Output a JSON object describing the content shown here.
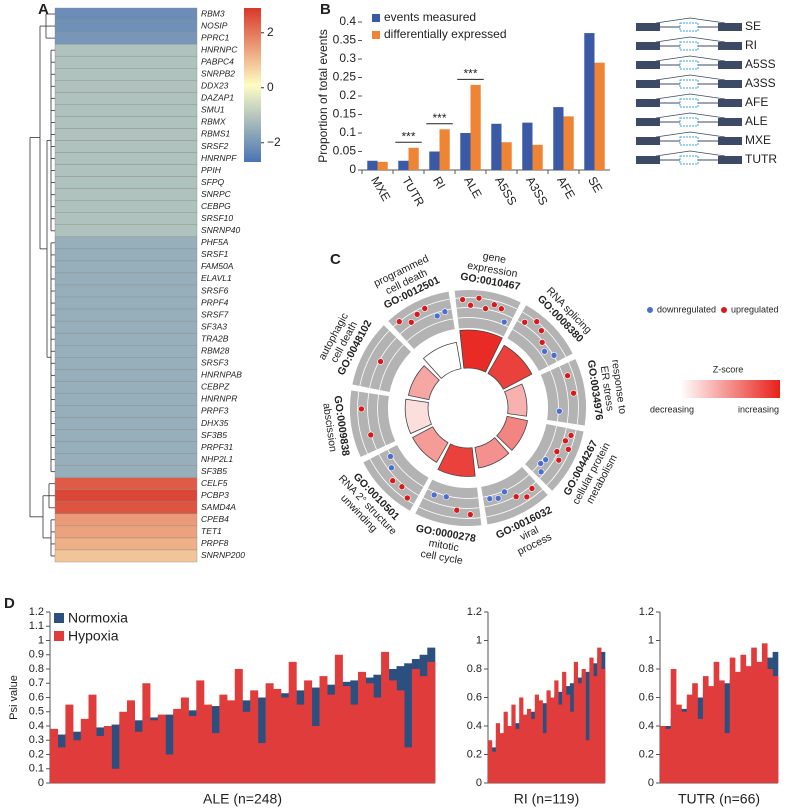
{
  "chart_data": [
    {
      "type": "heatmap",
      "panel_label": "A",
      "rows": [
        "RBM3",
        "NOSIP",
        "PPRC1",
        "HNRNPC",
        "PABPC4",
        "SNRPB2",
        "DDX23",
        "DAZAP1",
        "SMU1",
        "RBMX",
        "RBMS1",
        "SRSF2",
        "HNRNPF",
        "PPIH",
        "SFPQ",
        "SNRPC",
        "CEBPG",
        "SRSF10",
        "SNRNP40",
        "PHF5A",
        "SRSF1",
        "FAM50A",
        "ELAVL1",
        "SRSF6",
        "PRPF4",
        "SRSF7",
        "SF3A3",
        "TRA2B",
        "RBM28",
        "SRSF3",
        "HNRNPAB",
        "CEBPZ",
        "HNRNPR",
        "PRPF3",
        "DHX35",
        "SF3B5",
        "PRPF31",
        "NHP2L1",
        "SF3B5",
        "CELF5",
        "PCBP3",
        "SAMD4A",
        "CPEB4",
        "TET1",
        "PRPF8",
        "SNRNP200"
      ],
      "values": [
        -2.2,
        -2.1,
        -2.0,
        -1.1,
        -1.1,
        -1.1,
        -1.1,
        -1.1,
        -1.1,
        -1.1,
        -1.1,
        -1.1,
        -1.1,
        -1.1,
        -1.1,
        -1.1,
        -1.1,
        -1.1,
        -1.1,
        -1.5,
        -1.5,
        -1.5,
        -1.5,
        -1.5,
        -1.5,
        -1.5,
        -1.5,
        -1.5,
        -1.5,
        -1.5,
        -1.5,
        -1.5,
        -1.5,
        -1.5,
        -1.5,
        -1.5,
        -1.5,
        -1.5,
        -1.5,
        2.4,
        2.7,
        2.5,
        1.5,
        1.4,
        1.2,
        0.9
      ],
      "colormap": [
        "#4a74b4",
        "#fdfdc3",
        "#d8382b"
      ],
      "clim": [
        -2.7,
        2.9
      ],
      "cticks": [
        2,
        0,
        {
          "value": -2,
          "label": "−2"
        }
      ]
    },
    {
      "type": "bar",
      "barmode": "group",
      "panel_label": "B",
      "ylabel": "Proportion of total events",
      "categories": [
        "MXE",
        "TUTR",
        "RI",
        "ALE",
        "A5SS",
        "A3SS",
        "AFE",
        "SE"
      ],
      "series": [
        {
          "name": "events measured",
          "color": "#3b5aa6",
          "values": [
            0.025,
            0.025,
            0.05,
            0.1,
            0.125,
            0.128,
            0.17,
            0.37
          ]
        },
        {
          "name": "differentially expressed",
          "color": "#ee8434",
          "values": [
            0.022,
            0.06,
            0.11,
            0.23,
            0.075,
            0.068,
            0.145,
            0.29
          ]
        }
      ],
      "ylim": [
        0,
        0.4
      ],
      "yticks": [
        0,
        0.05,
        0.1,
        0.15,
        0.2,
        0.25,
        0.3,
        0.35,
        0.4
      ],
      "significance": [
        {
          "text": "***",
          "x": "TUTR",
          "y": 0.075
        },
        {
          "text": "***",
          "x": "RI",
          "y": 0.125
        },
        {
          "text": "***",
          "x": "ALE",
          "y": 0.245
        }
      ],
      "schematic_labels": [
        "SE",
        "RI",
        "A5SS",
        "A3SS",
        "AFE",
        "ALE",
        "MXE",
        "TUTR"
      ]
    },
    {
      "type": "gocircle",
      "panel_label": "C",
      "terms": [
        {
          "name": [
            "gene",
            "expression"
          ],
          "id": "GO:0010467",
          "count": 1.0,
          "z": 0.95,
          "up": [
            0.75,
            0.6,
            0.8,
            0.55,
            0.7,
            0.65
          ],
          "down": [
            0.35
          ]
        },
        {
          "name": [
            "RNA splicing"
          ],
          "id": "GO:0008380",
          "count": 0.85,
          "z": 0.85,
          "up": [
            0.6,
            0.8,
            0.7,
            0.5
          ],
          "down": [
            0.4,
            0.55
          ]
        },
        {
          "name": [
            "response to",
            "ER stress"
          ],
          "id": "GO:0034976",
          "count": 0.5,
          "z": 0.35,
          "up": [
            0.65,
            0.7
          ],
          "down": [
            0.3
          ]
        },
        {
          "name": [
            "cellular protein",
            "metabolism"
          ],
          "id": "GO:0044267",
          "count": 0.55,
          "z": 0.55,
          "up": [
            0.7,
            0.6,
            0.75,
            0.5,
            0.65
          ],
          "down": [
            0.35,
            0.3,
            0.45
          ]
        },
        {
          "name": [
            "viral",
            "process"
          ],
          "id": "GO:0016032",
          "count": 0.55,
          "z": 0.5,
          "up": [
            0.6,
            0.7,
            0.55
          ],
          "down": [
            0.3,
            0.4,
            0.35
          ]
        },
        {
          "name": [
            "mitotic",
            "cell cycle"
          ],
          "id": "GO:0000278",
          "count": 0.75,
          "z": 0.85,
          "up": [
            0.7,
            0.6
          ],
          "down": [
            0.3,
            0.35
          ]
        },
        {
          "name": [
            "RNA 2° structure",
            "unwinding"
          ],
          "id": "GO:0010501",
          "count": 0.6,
          "z": 0.45,
          "up": [
            0.75,
            0.6,
            0.65
          ],
          "down": [
            0.45,
            0.3
          ]
        },
        {
          "name": [
            "abscission"
          ],
          "id": "GO:0009838",
          "count": 0.6,
          "z": 0.15,
          "up": [
            0.55,
            0.7
          ],
          "down": []
        },
        {
          "name": [
            "autophagic",
            "cell death"
          ],
          "id": "GO:0048102",
          "count": 0.55,
          "z": 0.4,
          "up": [
            0.5
          ],
          "down": []
        },
        {
          "name": [
            "programmed",
            "cell death"
          ],
          "id": "GO:0012501",
          "count": 0.7,
          "z": 0.0,
          "up": [
            0.8,
            0.6,
            0.7,
            0.75
          ],
          "down": [
            0.45,
            0.5
          ]
        }
      ],
      "up_label": "upregulated",
      "down_label": "downregulated",
      "up_color": "#d7191c",
      "down_color": "#4a6fd0",
      "zscore_title": "Z-score",
      "zscore_low": "decreasing",
      "zscore_high": "increasing",
      "low_color": "#ffffff",
      "high_color": "#e8201a"
    },
    {
      "type": "bar",
      "barmode": "overlay",
      "panel_label": "D",
      "ylabel": "Psi value",
      "xlabel": "ALE (n=248)",
      "series": [
        {
          "name": "Normoxia",
          "color": "#2b4f7e",
          "values": [
            0.32,
            0.34,
            0.35,
            0.36,
            0.37,
            0.38,
            0.39,
            0.4,
            0.41,
            0.42,
            0.43,
            0.44,
            0.45,
            0.46,
            0.47,
            0.48,
            0.49,
            0.5,
            0.51,
            0.52,
            0.53,
            0.54,
            0.55,
            0.56,
            0.57,
            0.58,
            0.59,
            0.6,
            0.61,
            0.62,
            0.63,
            0.64,
            0.65,
            0.66,
            0.67,
            0.68,
            0.69,
            0.7,
            0.71,
            0.72,
            0.73,
            0.74,
            0.76,
            0.78,
            0.8,
            0.82,
            0.84,
            0.87,
            0.9,
            0.95
          ]
        },
        {
          "name": "Hypoxia",
          "color": "#e03c3c",
          "values": [
            0.38,
            0.25,
            0.55,
            0.3,
            0.45,
            0.62,
            0.33,
            0.4,
            0.1,
            0.5,
            0.58,
            0.36,
            0.7,
            0.44,
            0.48,
            0.2,
            0.52,
            0.6,
            0.47,
            0.72,
            0.55,
            0.35,
            0.62,
            0.58,
            0.8,
            0.5,
            0.65,
            0.28,
            0.7,
            0.66,
            0.6,
            0.85,
            0.55,
            0.72,
            0.4,
            0.75,
            0.62,
            0.9,
            0.68,
            0.55,
            0.78,
            0.7,
            0.6,
            0.92,
            0.72,
            0.65,
            0.25,
            0.8,
            0.75,
            0.85
          ]
        }
      ],
      "ylim": [
        0,
        1.2
      ],
      "yticks": [
        0,
        0.1,
        0.2,
        0.3,
        0.4,
        0.5,
        0.6,
        0.7,
        0.8,
        0.9,
        1,
        1.1,
        1.2
      ]
    },
    {
      "type": "bar",
      "barmode": "overlay",
      "xlabel": "RI (n=119)",
      "series": [
        {
          "color": "#2b4f7e",
          "values": [
            0.2,
            0.25,
            0.3,
            0.33,
            0.36,
            0.38,
            0.4,
            0.42,
            0.44,
            0.46,
            0.48,
            0.5,
            0.52,
            0.54,
            0.56,
            0.58,
            0.6,
            0.62,
            0.64,
            0.66,
            0.68,
            0.7,
            0.72,
            0.74,
            0.76,
            0.78,
            0.8,
            0.84,
            0.88,
            0.92
          ]
        },
        {
          "color": "#e03c3c",
          "values": [
            0.3,
            0.22,
            0.42,
            0.35,
            0.5,
            0.4,
            0.55,
            0.38,
            0.6,
            0.48,
            0.52,
            0.45,
            0.62,
            0.58,
            0.35,
            0.65,
            0.6,
            0.72,
            0.55,
            0.78,
            0.62,
            0.5,
            0.85,
            0.7,
            0.8,
            0.3,
            0.88,
            0.75,
            0.95,
            0.8
          ]
        }
      ],
      "ylim": [
        0,
        1.2
      ],
      "yticks": [
        0,
        0.2,
        0.4,
        0.6,
        0.8,
        1,
        1.2
      ]
    },
    {
      "type": "bar",
      "barmode": "overlay",
      "xlabel": "TUTR (n=66)",
      "series": [
        {
          "color": "#2b4f7e",
          "values": [
            0.35,
            0.4,
            0.45,
            0.48,
            0.52,
            0.55,
            0.58,
            0.6,
            0.62,
            0.64,
            0.66,
            0.68,
            0.7,
            0.72,
            0.74,
            0.76,
            0.78,
            0.8,
            0.82,
            0.84,
            0.88,
            0.92
          ]
        },
        {
          "color": "#e03c3c",
          "values": [
            0.4,
            0.38,
            0.8,
            0.55,
            0.5,
            0.62,
            0.7,
            0.45,
            0.75,
            0.68,
            0.85,
            0.72,
            0.35,
            0.88,
            0.78,
            0.9,
            0.82,
            0.95,
            0.85,
            0.98,
            0.8,
            0.75
          ]
        }
      ],
      "ylim": [
        0,
        1.2
      ],
      "yticks": [
        0,
        0.2,
        0.4,
        0.6,
        0.8,
        1,
        1.2
      ]
    }
  ]
}
